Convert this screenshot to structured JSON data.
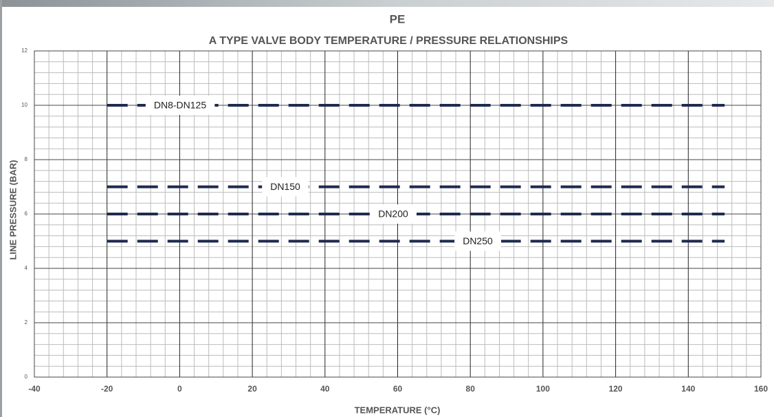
{
  "chart_data": {
    "type": "line",
    "title": "PE",
    "subtitle": "A TYPE VALVE BODY TEMPERATURE / PRESSURE RELATIONSHIPS",
    "x_label": "TEMPERATURE (°C)",
    "y_label": "LINE PRESSURE (BAR)",
    "x": [
      -20,
      150
    ],
    "series": [
      {
        "name": "DN8-DN125",
        "color": "#1f2a4f",
        "values": [
          10,
          10
        ]
      },
      {
        "name": "DN150",
        "color": "#1f2a4f",
        "values": [
          7,
          7
        ]
      },
      {
        "name": "DN200",
        "color": "#1f2a4f",
        "values": [
          6,
          6
        ]
      },
      {
        "name": "DN250",
        "color": "#1f2a4f",
        "values": [
          5,
          5
        ]
      }
    ],
    "xlim": [
      -40,
      160
    ],
    "xticks": [
      -40,
      -20,
      0,
      20,
      40,
      60,
      80,
      100,
      120,
      140,
      160
    ],
    "ylim": [
      0,
      12
    ],
    "yticks": [
      0,
      2,
      4,
      6,
      8,
      10,
      12
    ],
    "grid": true
  }
}
